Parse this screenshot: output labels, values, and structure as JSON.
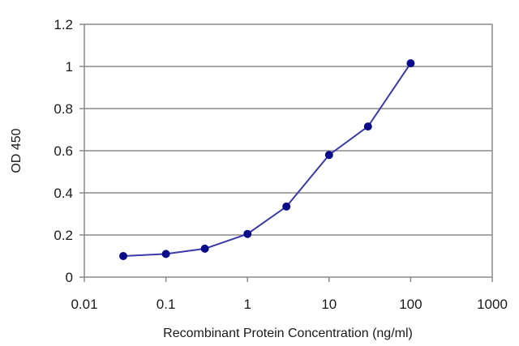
{
  "chart_data": {
    "type": "line",
    "title": "",
    "xlabel": "Recombinant Protein Concentration (ng/ml)",
    "ylabel": "OD 450",
    "x_scale": "log",
    "xlim": [
      0.01,
      1000
    ],
    "ylim": [
      0,
      1.2
    ],
    "x_ticks": [
      0.01,
      0.1,
      1,
      10,
      100,
      1000
    ],
    "x_tick_labels": [
      "0.01",
      "0.1",
      "1",
      "10",
      "100",
      "1000"
    ],
    "y_ticks": [
      0,
      0.2,
      0.4,
      0.6,
      0.8,
      1,
      1.2
    ],
    "y_tick_labels": [
      "0",
      "0.2",
      "0.4",
      "0.6",
      "0.8",
      "1",
      "1.2"
    ],
    "grid": "horizontal",
    "legend": "none",
    "series": [
      {
        "x": [
          0.03,
          0.1,
          0.3,
          1,
          3,
          10,
          30,
          100
        ],
        "y": [
          0.1,
          0.11,
          0.135,
          0.205,
          0.335,
          0.58,
          0.715,
          1.015
        ],
        "color": "#3a3aa8",
        "marker_color": "#0a0a8a"
      }
    ]
  }
}
